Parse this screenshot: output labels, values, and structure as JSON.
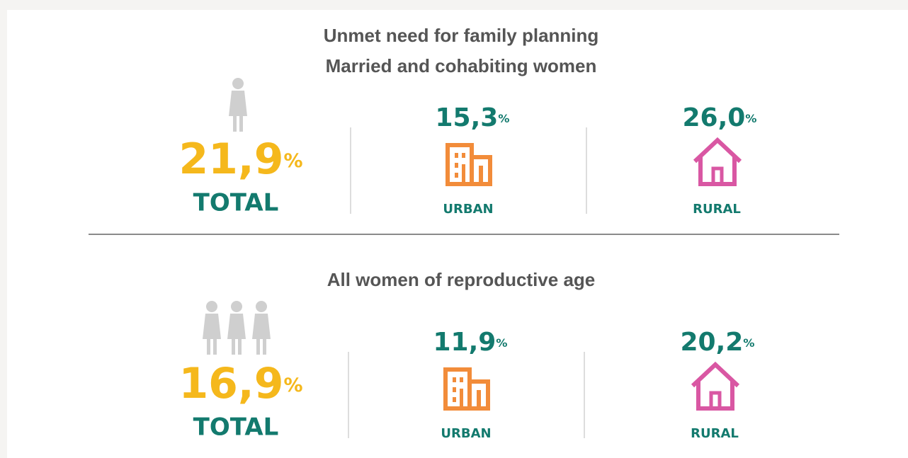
{
  "sections": [
    {
      "title": [
        "Unmet need for family planning",
        "Married and cohabiting women"
      ],
      "total": {
        "value": "21,9",
        "unit": "%",
        "label": "TOTAL"
      },
      "urban": {
        "value": "15,3",
        "unit": "%",
        "label": "URBAN"
      },
      "rural": {
        "value": "26,0",
        "unit": "%",
        "label": "RURAL"
      }
    },
    {
      "title": [
        "All women of reproductive age"
      ],
      "total": {
        "value": "16,9",
        "unit": "%",
        "label": "TOTAL"
      },
      "urban": {
        "value": "11,9",
        "unit": "%",
        "label": "URBAN"
      },
      "rural": {
        "value": "20,2",
        "unit": "%",
        "label": "RURAL"
      }
    }
  ]
}
